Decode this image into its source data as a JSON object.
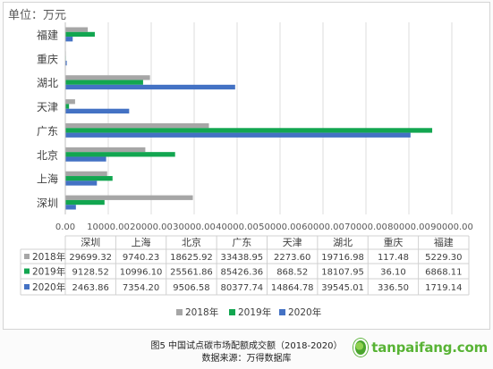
{
  "chart_data": {
    "type": "bar",
    "orientation": "horizontal",
    "unit_label": "单位：万元",
    "categories": [
      "福建",
      "重庆",
      "湖北",
      "天津",
      "广东",
      "北京",
      "上海",
      "深圳"
    ],
    "series": [
      {
        "name": "2018年",
        "color": "#a6a6a6",
        "values": [
          5229.3,
          117.48,
          19716.98,
          2273.6,
          33438.95,
          18625.92,
          9740.23,
          29699.32
        ]
      },
      {
        "name": "2019年",
        "color": "#12a650",
        "values": [
          6868.11,
          36.1,
          18107.95,
          868.52,
          85426.36,
          25561.86,
          10996.1,
          9128.52
        ]
      },
      {
        "name": "2020年",
        "color": "#4472c4",
        "values": [
          1719.14,
          336.5,
          39545.01,
          14864.78,
          80377.74,
          9506.58,
          7354.2,
          2463.86
        ]
      }
    ],
    "xlim": [
      0,
      90000
    ],
    "x_ticks": [
      "0.00",
      "10000.00",
      "20000.00",
      "30000.00",
      "40000.00",
      "50000.00",
      "60000.00",
      "70000.00",
      "80000.00",
      "90000.00"
    ],
    "grid": true,
    "legend_position": "bottom",
    "data_table": {
      "columns": [
        "深圳",
        "上海",
        "北京",
        "广东",
        "天津",
        "湖北",
        "重庆",
        "福建"
      ],
      "rows": [
        {
          "label": "2018年",
          "color": "#a6a6a6",
          "values": [
            "29699.32",
            "9740.23",
            "18625.92",
            "33438.95",
            "2273.60",
            "19716.98",
            "117.48",
            "5229.30"
          ]
        },
        {
          "label": "2019年",
          "color": "#12a650",
          "values": [
            "9128.52",
            "10996.10",
            "25561.86",
            "85426.36",
            "868.52",
            "18107.95",
            "36.10",
            "6868.11"
          ]
        },
        {
          "label": "2020年",
          "color": "#4472c4",
          "values": [
            "2463.86",
            "7354.20",
            "9506.58",
            "80377.74",
            "14864.78",
            "39545.01",
            "336.50",
            "1719.14"
          ]
        }
      ]
    }
  },
  "caption": {
    "title": "图5  中国试点碳市场配额成交额（2018-2020）",
    "source": "数据来源：万得数据库"
  },
  "watermark": {
    "text": "tanpaifang.com",
    "icon": "leaf-globe-icon"
  }
}
